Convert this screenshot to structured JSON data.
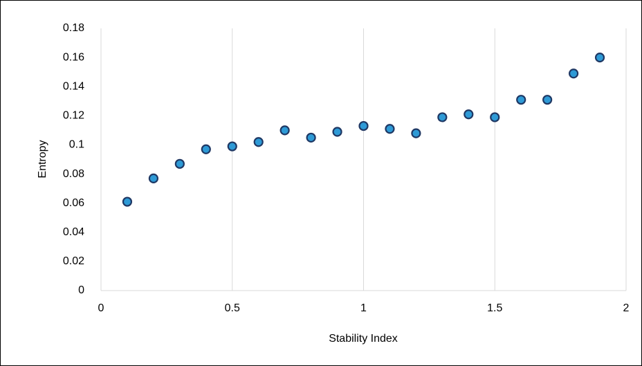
{
  "chart_data": {
    "type": "scatter",
    "x_label": "Stability Index",
    "y_label": "Entropy",
    "x": [
      0.1,
      0.2,
      0.3,
      0.4,
      0.5,
      0.6,
      0.7,
      0.8,
      0.9,
      1.0,
      1.1,
      1.2,
      1.3,
      1.4,
      1.5,
      1.6,
      1.7,
      1.8,
      1.9
    ],
    "values": [
      0.061,
      0.077,
      0.087,
      0.097,
      0.099,
      0.102,
      0.11,
      0.105,
      0.109,
      0.113,
      0.111,
      0.108,
      0.119,
      0.121,
      0.119,
      0.131,
      0.131,
      0.149,
      0.16
    ],
    "color": "#2e9ad6",
    "edgecolor": "#1f3864",
    "xlim": [
      0,
      2
    ],
    "xticks": [
      0,
      0.5,
      1,
      1.5,
      2
    ],
    "ylim": [
      0,
      0.18
    ],
    "yticks": [
      0,
      0.02,
      0.04,
      0.06,
      0.08,
      0.1,
      0.12,
      0.14,
      0.16,
      0.18
    ],
    "grid": "vertical"
  }
}
